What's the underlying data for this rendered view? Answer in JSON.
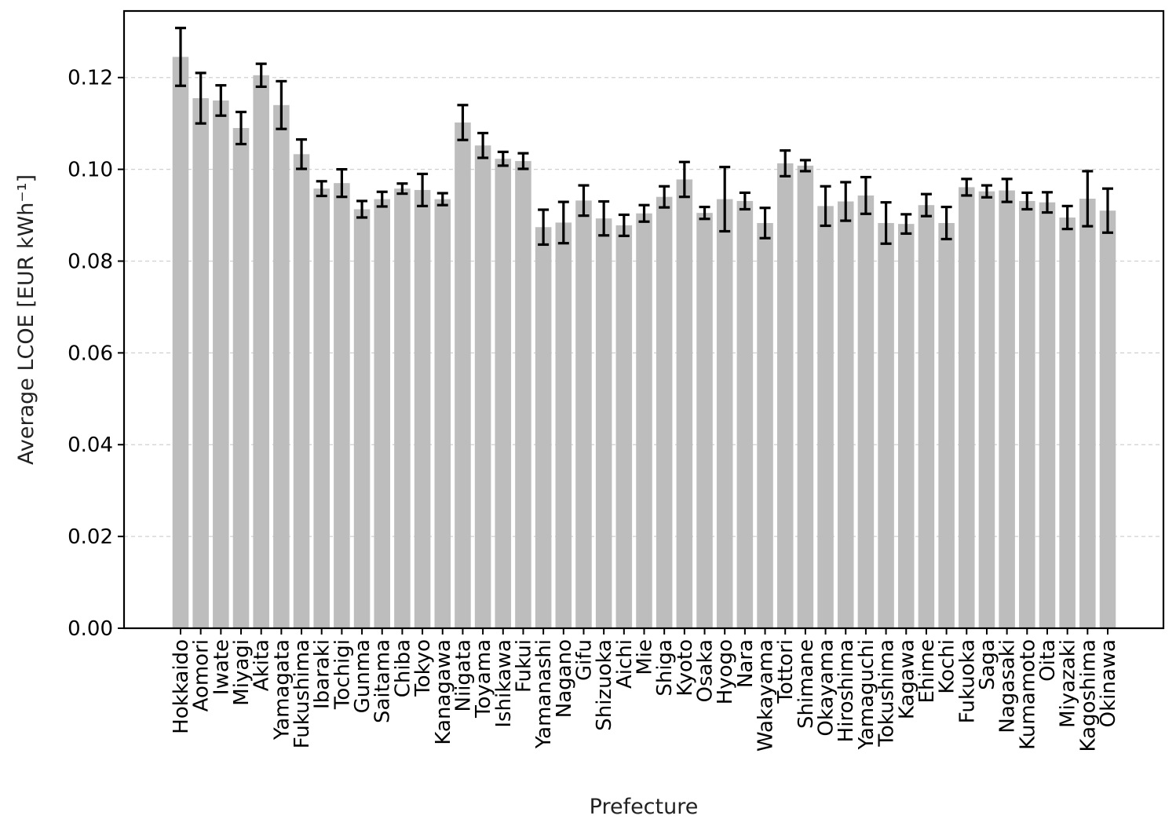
{
  "chart_data": {
    "type": "bar",
    "xlabel": "Prefecture",
    "ylabel": "Average LCOE [EUR kWh⁻¹]",
    "ylim": [
      0,
      0.1345
    ],
    "yticks": [
      "0.00",
      "0.02",
      "0.04",
      "0.06",
      "0.08",
      "0.10",
      "0.12"
    ],
    "grid": "horizontal dashed",
    "colors": {
      "bar": "#bdbdbd",
      "error_bar": "#000000"
    },
    "categories": [
      "Hokkaido",
      "Aomori",
      "Iwate",
      "Miyagi",
      "Akita",
      "Yamagata",
      "Fukushima",
      "Ibaraki",
      "Tochigi",
      "Gunma",
      "Saitama",
      "Chiba",
      "Tokyo",
      "Kanagawa",
      "Niigata",
      "Toyama",
      "Ishikawa",
      "Fukui",
      "Yamanashi",
      "Nagano",
      "Gifu",
      "Shizuoka",
      "Aichi",
      "Mie",
      "Shiga",
      "Kyoto",
      "Osaka",
      "Hyogo",
      "Nara",
      "Wakayama",
      "Tottori",
      "Shimane",
      "Okayama",
      "Hiroshima",
      "Yamaguchi",
      "Tokushima",
      "Kagawa",
      "Ehime",
      "Kochi",
      "Fukuoka",
      "Saga",
      "Nagasaki",
      "Kumamoto",
      "Oita",
      "Miyazaki",
      "Kagoshima",
      "Okinawa"
    ],
    "values": [
      0.1245,
      0.1155,
      0.115,
      0.109,
      0.1205,
      0.114,
      0.1033,
      0.0958,
      0.097,
      0.0913,
      0.0935,
      0.0958,
      0.0955,
      0.0935,
      0.1102,
      0.1052,
      0.1023,
      0.1018,
      0.0874,
      0.0884,
      0.0932,
      0.0893,
      0.0878,
      0.0904,
      0.094,
      0.0978,
      0.0905,
      0.0935,
      0.0931,
      0.0883,
      0.1013,
      0.1008,
      0.092,
      0.093,
      0.0943,
      0.0883,
      0.0881,
      0.0922,
      0.0883,
      0.0961,
      0.0952,
      0.0954,
      0.0931,
      0.0928,
      0.0895,
      0.0936,
      0.091
    ],
    "errors": [
      0.0063,
      0.0055,
      0.0033,
      0.0035,
      0.0025,
      0.0052,
      0.0032,
      0.0016,
      0.003,
      0.0018,
      0.0016,
      0.0011,
      0.0035,
      0.0013,
      0.0038,
      0.0027,
      0.0015,
      0.0017,
      0.0038,
      0.0045,
      0.0033,
      0.0037,
      0.0023,
      0.0018,
      0.0023,
      0.0038,
      0.0013,
      0.007,
      0.0018,
      0.0033,
      0.0028,
      0.0012,
      0.0043,
      0.0042,
      0.004,
      0.0045,
      0.0021,
      0.0024,
      0.0035,
      0.0018,
      0.0013,
      0.0025,
      0.0018,
      0.0022,
      0.0025,
      0.006,
      0.0048
    ]
  }
}
